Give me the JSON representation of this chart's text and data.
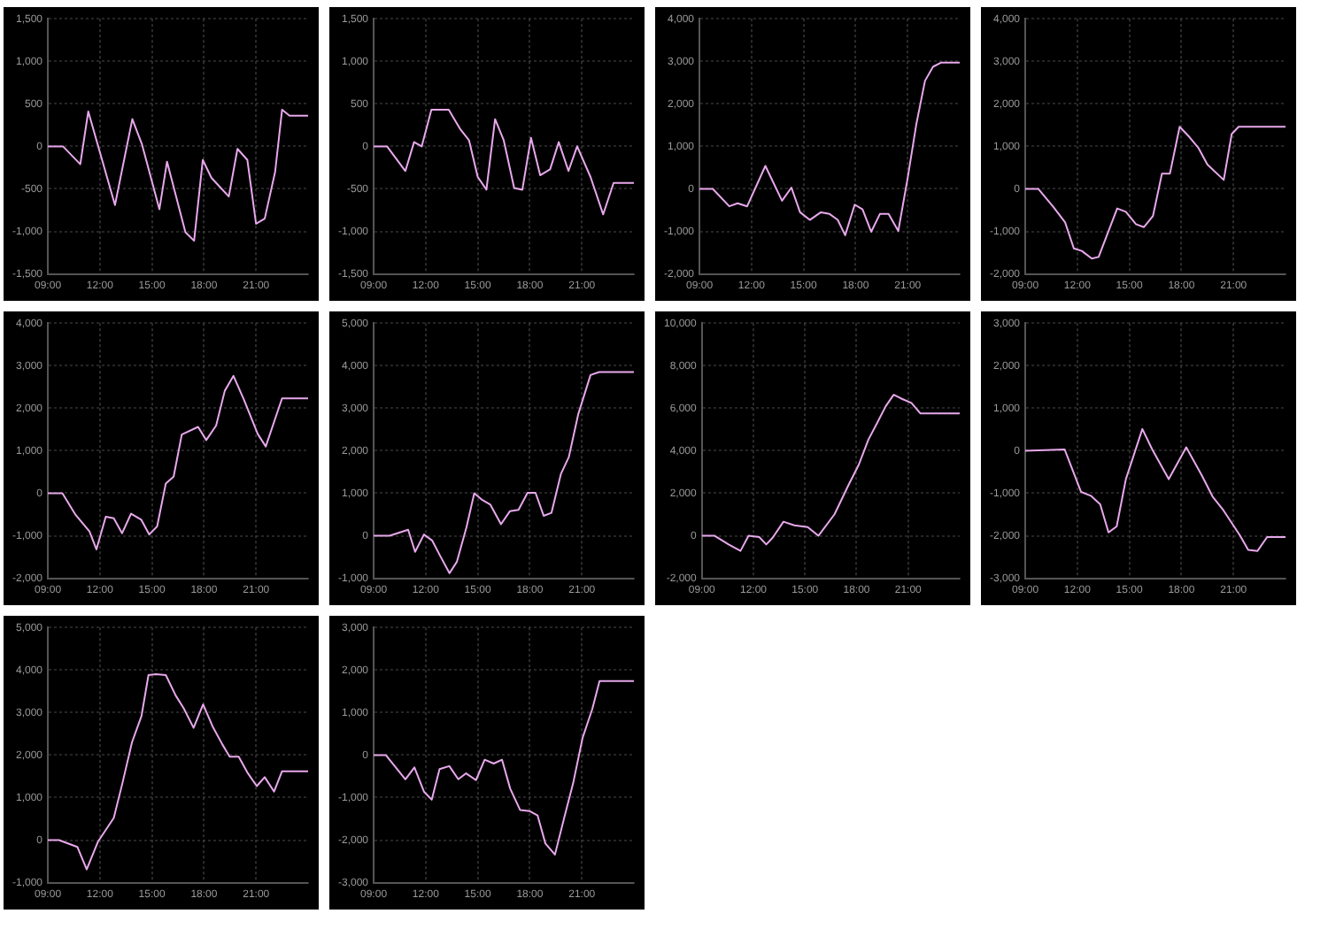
{
  "chart_data": [
    {
      "type": "line",
      "color": "#e8a8ec",
      "grid": true,
      "marker": "none",
      "line_style": "solid",
      "xlim": [
        9,
        24
      ],
      "xticks": [
        {
          "value": 9,
          "label": "09:00"
        },
        {
          "value": 12,
          "label": "12:00"
        },
        {
          "value": 15,
          "label": "15:00"
        },
        {
          "value": 18,
          "label": "18:00"
        },
        {
          "value": 21,
          "label": "21:00"
        }
      ],
      "ylim": [
        -1500,
        1500
      ],
      "yticks": [
        {
          "value": -1500,
          "label": "-1,500"
        },
        {
          "value": -1000,
          "label": "-1,000"
        },
        -500,
        0,
        500,
        {
          "value": 1000,
          "label": "1,000"
        },
        {
          "value": 1500,
          "label": "1,500"
        }
      ],
      "x": [
        9,
        9.87,
        10.87,
        11.33,
        12.87,
        13.87,
        14.43,
        15.43,
        15.87,
        16.93,
        17.43,
        17.93,
        18.43,
        19.43,
        19.93,
        20.5,
        21,
        21.5,
        22.1,
        22.5,
        22.93,
        24
      ],
      "values": [
        0,
        0,
        -210,
        410,
        -690,
        320,
        20,
        -740,
        -180,
        -1010,
        -1110,
        -160,
        -370,
        -590,
        -30,
        -160,
        -910,
        -850,
        -300,
        430,
        360,
        360
      ]
    },
    {
      "type": "line",
      "color": "#e8a8ec",
      "grid": true,
      "marker": "none",
      "line_style": "solid",
      "xlim": [
        9,
        24
      ],
      "xticks": [
        {
          "value": 9,
          "label": "09:00"
        },
        {
          "value": 12,
          "label": "12:00"
        },
        {
          "value": 15,
          "label": "15:00"
        },
        {
          "value": 18,
          "label": "18:00"
        },
        {
          "value": 21,
          "label": "21:00"
        }
      ],
      "ylim": [
        -1500,
        1500
      ],
      "yticks": [
        {
          "value": -1500,
          "label": "-1,500"
        },
        {
          "value": -1000,
          "label": "-1,000"
        },
        -500,
        0,
        500,
        {
          "value": 1000,
          "label": "1,000"
        },
        {
          "value": 1500,
          "label": "1,500"
        }
      ],
      "x": [
        9,
        9.77,
        10.83,
        11.33,
        11.77,
        12.33,
        13.33,
        14,
        14.5,
        15,
        15.5,
        16,
        16.5,
        17.1,
        17.57,
        18.07,
        18.6,
        19.17,
        19.67,
        20.23,
        20.73,
        21.5,
        22.23,
        22.83,
        24
      ],
      "values": [
        0,
        0,
        -290,
        50,
        0,
        430,
        430,
        200,
        70,
        -360,
        -510,
        320,
        70,
        -490,
        -510,
        100,
        -340,
        -270,
        50,
        -290,
        0,
        -360,
        -800,
        -430,
        -430
      ]
    },
    {
      "type": "line",
      "color": "#e8a8ec",
      "grid": true,
      "marker": "none",
      "line_style": "solid",
      "xlim": [
        9,
        24
      ],
      "xticks": [
        {
          "value": 9,
          "label": "09:00"
        },
        {
          "value": 12,
          "label": "12:00"
        },
        {
          "value": 15,
          "label": "15:00"
        },
        {
          "value": 18,
          "label": "18:00"
        },
        {
          "value": 21,
          "label": "21:00"
        }
      ],
      "ylim": [
        -2000,
        4000
      ],
      "yticks": [
        {
          "value": -2000,
          "label": "-2,000"
        },
        {
          "value": -1000,
          "label": "-1,000"
        },
        0,
        {
          "value": 1000,
          "label": "1,000"
        },
        {
          "value": 2000,
          "label": "2,000"
        },
        {
          "value": 3000,
          "label": "3,000"
        },
        {
          "value": 4000,
          "label": "4,000"
        }
      ],
      "x": [
        9,
        9.77,
        10.72,
        11.2,
        11.75,
        12.8,
        13.76,
        14.3,
        14.8,
        15.36,
        16,
        16.5,
        16.97,
        17.4,
        17.95,
        18.4,
        18.9,
        19.4,
        19.9,
        20.46,
        21,
        21.5,
        22,
        22.46,
        22.94,
        24
      ],
      "values": [
        0,
        0,
        -410,
        -340,
        -410,
        540,
        -280,
        30,
        -550,
        -730,
        -550,
        -590,
        -730,
        -1090,
        -370,
        -480,
        -1010,
        -590,
        -590,
        -990,
        250,
        1520,
        2540,
        2870,
        2970,
        2970
      ]
    },
    {
      "type": "line",
      "color": "#e8a8ec",
      "grid": true,
      "marker": "none",
      "line_style": "solid",
      "xlim": [
        9,
        24
      ],
      "xticks": [
        {
          "value": 9,
          "label": "09:00"
        },
        {
          "value": 12,
          "label": "12:00"
        },
        {
          "value": 15,
          "label": "15:00"
        },
        {
          "value": 18,
          "label": "18:00"
        },
        {
          "value": 21,
          "label": "21:00"
        }
      ],
      "ylim": [
        -2000,
        4000
      ],
      "yticks": [
        {
          "value": -2000,
          "label": "-2,000"
        },
        {
          "value": -1000,
          "label": "-1,000"
        },
        0,
        {
          "value": 1000,
          "label": "1,000"
        },
        {
          "value": 2000,
          "label": "2,000"
        },
        {
          "value": 3000,
          "label": "3,000"
        },
        {
          "value": 4000,
          "label": "4,000"
        }
      ],
      "x": [
        9,
        9.75,
        10.63,
        11.3,
        11.8,
        12.26,
        12.84,
        13.23,
        14.3,
        14.8,
        15.38,
        15.84,
        16.36,
        16.88,
        17.34,
        17.9,
        18.48,
        18.97,
        19.5,
        20.44,
        20.9,
        21.3,
        24
      ],
      "values": [
        0,
        0,
        -430,
        -790,
        -1400,
        -1460,
        -1640,
        -1600,
        -460,
        -540,
        -830,
        -900,
        -640,
        360,
        360,
        1460,
        1210,
        970,
        570,
        210,
        1290,
        1460,
        1460
      ]
    },
    {
      "type": "line",
      "color": "#e8a8ec",
      "grid": true,
      "marker": "none",
      "line_style": "solid",
      "xlim": [
        9,
        24
      ],
      "xticks": [
        {
          "value": 9,
          "label": "09:00"
        },
        {
          "value": 12,
          "label": "12:00"
        },
        {
          "value": 15,
          "label": "15:00"
        },
        {
          "value": 18,
          "label": "18:00"
        },
        {
          "value": 21,
          "label": "21:00"
        }
      ],
      "ylim": [
        -2000,
        4000
      ],
      "yticks": [
        {
          "value": -2000,
          "label": "-2,000"
        },
        {
          "value": -1000,
          "label": "-1,000"
        },
        0,
        {
          "value": 1000,
          "label": "1,000"
        },
        {
          "value": 2000,
          "label": "2,000"
        },
        {
          "value": 3000,
          "label": "3,000"
        },
        {
          "value": 4000,
          "label": "4,000"
        }
      ],
      "x": [
        9,
        9.84,
        10.6,
        11.4,
        11.8,
        12.34,
        12.8,
        13.28,
        13.8,
        14.38,
        14.84,
        15.3,
        15.8,
        16.25,
        16.72,
        17.66,
        18.13,
        18.7,
        19.2,
        19.7,
        20.3,
        21.1,
        21.56,
        22.5,
        24
      ],
      "values": [
        0,
        0,
        -510,
        -900,
        -1320,
        -550,
        -590,
        -940,
        -480,
        -620,
        -970,
        -780,
        230,
        390,
        1380,
        1560,
        1250,
        1590,
        2410,
        2760,
        2200,
        1390,
        1100,
        2230,
        2230
      ]
    },
    {
      "type": "line",
      "color": "#e8a8ec",
      "grid": true,
      "marker": "none",
      "line_style": "solid",
      "xlim": [
        9,
        24
      ],
      "xticks": [
        {
          "value": 9,
          "label": "09:00"
        },
        {
          "value": 12,
          "label": "12:00"
        },
        {
          "value": 15,
          "label": "15:00"
        },
        {
          "value": 18,
          "label": "18:00"
        },
        {
          "value": 21,
          "label": "21:00"
        }
      ],
      "ylim": [
        -1000,
        5000
      ],
      "yticks": [
        {
          "value": -1000,
          "label": "-1,000"
        },
        0,
        {
          "value": 1000,
          "label": "1,000"
        },
        {
          "value": 2000,
          "label": "2,000"
        },
        {
          "value": 3000,
          "label": "3,000"
        },
        {
          "value": 4000,
          "label": "4,000"
        },
        {
          "value": 5000,
          "label": "5,000"
        }
      ],
      "x": [
        9,
        9.92,
        10.99,
        11.39,
        11.9,
        12.37,
        12.83,
        13.37,
        13.8,
        14.35,
        14.8,
        15.27,
        15.73,
        16.34,
        16.86,
        17.35,
        17.87,
        18.33,
        18.8,
        19.25,
        19.8,
        20.25,
        20.8,
        21.5,
        22,
        24
      ],
      "values": [
        0,
        0,
        140,
        -380,
        30,
        -110,
        -470,
        -880,
        -610,
        200,
        1000,
        840,
        730,
        270,
        580,
        610,
        1010,
        1010,
        470,
        540,
        1460,
        1850,
        2870,
        3780,
        3850,
        3850
      ]
    },
    {
      "type": "line",
      "color": "#e8a8ec",
      "grid": true,
      "marker": "none",
      "line_style": "solid",
      "xlim": [
        9,
        24
      ],
      "xticks": [
        {
          "value": 9,
          "label": "09:00"
        },
        {
          "value": 12,
          "label": "12:00"
        },
        {
          "value": 15,
          "label": "15:00"
        },
        {
          "value": 18,
          "label": "18:00"
        },
        {
          "value": 21,
          "label": "21:00"
        }
      ],
      "ylim": [
        -2000,
        10000
      ],
      "yticks": [
        {
          "value": -2000,
          "label": "-2,000"
        },
        0,
        {
          "value": 2000,
          "label": "2,000"
        },
        {
          "value": 4000,
          "label": "4,000"
        },
        {
          "value": 6000,
          "label": "6,000"
        },
        {
          "value": 8000,
          "label": "8,000"
        },
        {
          "value": 10000,
          "label": "10,000"
        }
      ],
      "x": [
        9,
        9.75,
        10.56,
        11.25,
        11.72,
        12.34,
        12.75,
        13.13,
        13.75,
        14.38,
        15.16,
        15.78,
        16.72,
        17.5,
        18.13,
        18.69,
        19.22,
        19.69,
        20.16,
        20.63,
        21.19,
        21.72,
        24
      ],
      "values": [
        0,
        0,
        -410,
        -710,
        0,
        -60,
        -410,
        -80,
        660,
        490,
        410,
        0,
        1010,
        2330,
        3340,
        4520,
        5340,
        6080,
        6630,
        6440,
        6250,
        5750,
        5750
      ]
    },
    {
      "type": "line",
      "color": "#e8a8ec",
      "grid": true,
      "marker": "none",
      "line_style": "solid",
      "xlim": [
        9,
        24
      ],
      "xticks": [
        {
          "value": 9,
          "label": "09:00"
        },
        {
          "value": 12,
          "label": "12:00"
        },
        {
          "value": 15,
          "label": "15:00"
        },
        {
          "value": 18,
          "label": "18:00"
        },
        {
          "value": 21,
          "label": "21:00"
        }
      ],
      "ylim": [
        -3000,
        3000
      ],
      "yticks": [
        {
          "value": -3000,
          "label": "-3,000"
        },
        {
          "value": -2000,
          "label": "-2,000"
        },
        {
          "value": -1000,
          "label": "-1,000"
        },
        0,
        {
          "value": 1000,
          "label": "1,000"
        },
        {
          "value": 2000,
          "label": "2,000"
        },
        {
          "value": 3000,
          "label": "3,000"
        }
      ],
      "x": [
        9,
        11.27,
        12.22,
        12.78,
        13.32,
        13.8,
        14.27,
        14.8,
        15.75,
        16.32,
        17.27,
        18.28,
        19.16,
        19.8,
        20.42,
        21.37,
        21.85,
        22.38,
        22.94,
        24
      ],
      "values": [
        0,
        30,
        -970,
        -1060,
        -1260,
        -1920,
        -1780,
        -670,
        510,
        30,
        -670,
        80,
        -570,
        -1080,
        -1400,
        -1990,
        -2330,
        -2360,
        -2030,
        -2030
      ]
    },
    {
      "type": "line",
      "color": "#e8a8ec",
      "grid": true,
      "marker": "none",
      "line_style": "solid",
      "xlim": [
        9,
        24
      ],
      "xticks": [
        {
          "value": 9,
          "label": "09:00"
        },
        {
          "value": 12,
          "label": "12:00"
        },
        {
          "value": 15,
          "label": "15:00"
        },
        {
          "value": 18,
          "label": "18:00"
        },
        {
          "value": 21,
          "label": "21:00"
        }
      ],
      "ylim": [
        -1000,
        5000
      ],
      "yticks": [
        {
          "value": -1000,
          "label": "-1,000"
        },
        0,
        {
          "value": 1000,
          "label": "1,000"
        },
        {
          "value": 2000,
          "label": "2,000"
        },
        {
          "value": 3000,
          "label": "3,000"
        },
        {
          "value": 4000,
          "label": "4,000"
        },
        {
          "value": 5000,
          "label": "5,000"
        }
      ],
      "x": [
        9,
        9.64,
        10.7,
        11.24,
        11.9,
        12.8,
        13.3,
        13.85,
        14.4,
        14.8,
        15.23,
        15.8,
        16.37,
        16.83,
        17.4,
        17.95,
        18.5,
        19.06,
        19.48,
        20,
        20.5,
        21.04,
        21.5,
        22.04,
        22.5,
        24
      ],
      "values": [
        0,
        0,
        -160,
        -690,
        -30,
        520,
        1340,
        2300,
        2920,
        3880,
        3900,
        3880,
        3400,
        3100,
        2640,
        3190,
        2670,
        2250,
        1960,
        1960,
        1590,
        1270,
        1480,
        1140,
        1620,
        1620
      ]
    },
    {
      "type": "line",
      "color": "#e8a8ec",
      "grid": true,
      "marker": "none",
      "line_style": "solid",
      "xlim": [
        9,
        24
      ],
      "xticks": [
        {
          "value": 9,
          "label": "09:00"
        },
        {
          "value": 12,
          "label": "12:00"
        },
        {
          "value": 15,
          "label": "15:00"
        },
        {
          "value": 18,
          "label": "18:00"
        },
        {
          "value": 21,
          "label": "21:00"
        }
      ],
      "ylim": [
        -3000,
        3000
      ],
      "yticks": [
        {
          "value": -3000,
          "label": "-3,000"
        },
        {
          "value": -2000,
          "label": "-2,000"
        },
        {
          "value": -1000,
          "label": "-1,000"
        },
        0,
        {
          "value": 1000,
          "label": "1,000"
        },
        {
          "value": 2000,
          "label": "2,000"
        },
        {
          "value": 3000,
          "label": "3,000"
        }
      ],
      "x": [
        9,
        9.7,
        10.83,
        11.35,
        11.9,
        12.35,
        12.8,
        13.36,
        13.88,
        14.33,
        14.9,
        15.4,
        15.92,
        16.4,
        16.87,
        17.44,
        18,
        18.45,
        18.9,
        19.45,
        20,
        20.5,
        21.04,
        21.6,
        22.02,
        24
      ],
      "values": [
        0,
        0,
        -570,
        -290,
        -860,
        -1050,
        -330,
        -260,
        -570,
        -430,
        -590,
        -110,
        -200,
        -110,
        -790,
        -1290,
        -1320,
        -1420,
        -2080,
        -2340,
        -1450,
        -660,
        400,
        1080,
        1740,
        1740
      ]
    }
  ]
}
